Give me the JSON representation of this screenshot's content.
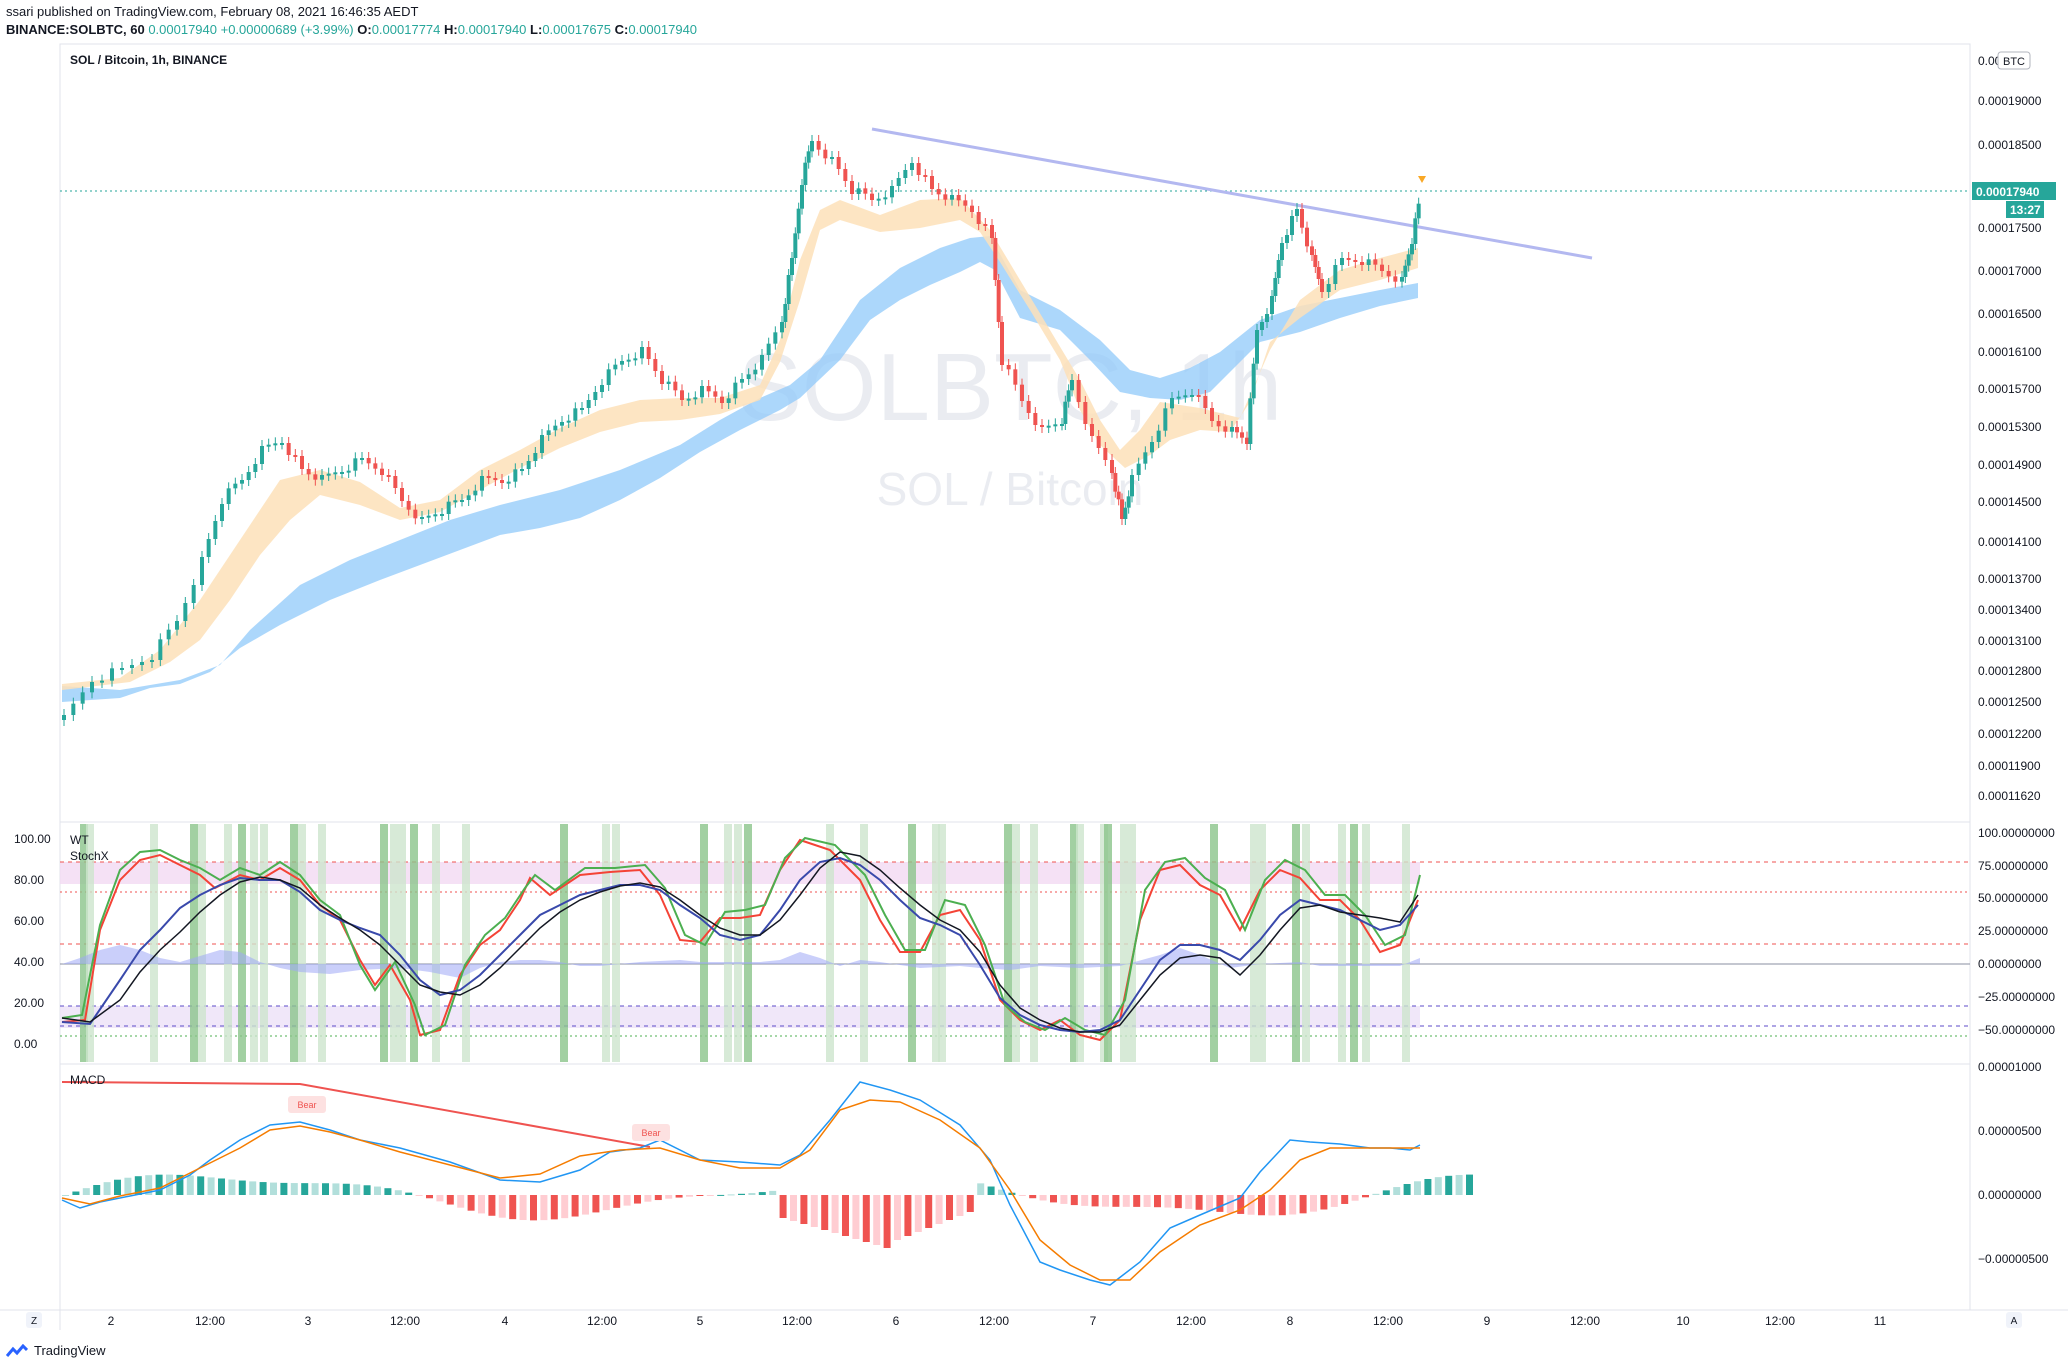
{
  "header": {
    "published": "ssari published on TradingView.com, February 08, 2021 16:46:35 AEDT",
    "symbol": "BINANCE:SOLBTC, 60",
    "last": "0.00017940",
    "change": "+0.00000689 (+3.99%)",
    "open_label": "O:",
    "open": "0.00017774",
    "high_label": "H:",
    "high": "0.00017940",
    "low_label": "L:",
    "low": "0.00017675",
    "close_label": "C:",
    "close": "0.00017940"
  },
  "main_pane": {
    "legend": "SOL / Bitcoin, 1h, BINANCE",
    "watermark_big": "SOLBTC, 1h",
    "watermark_small": "SOL / Bitcoin",
    "currency_badge": "BTC",
    "price_tag": "0.00017940",
    "countdown": "13:27",
    "price_ticks": [
      "0.00019000",
      "0.00018500",
      "0.00017940",
      "0.00017500",
      "0.00017000",
      "0.00016500",
      "0.00016100",
      "0.00015700",
      "0.00015300",
      "0.00014900",
      "0.00014500",
      "0.00014100",
      "0.00013700",
      "0.00013400",
      "0.00013100",
      "0.00012800",
      "0.00012500",
      "0.00012200",
      "0.00011900",
      "0.00011620"
    ],
    "top_tick_partial": "0.000"
  },
  "wt_pane": {
    "legend_1": "WT",
    "legend_2": "StochX",
    "left_ticks": [
      "100.00",
      "80.00",
      "60.00",
      "40.00",
      "20.00",
      "0.00"
    ],
    "right_ticks": [
      "100.00000000",
      "75.00000000",
      "50.00000000",
      "25.00000000",
      "0.00000000",
      "−25.00000000",
      "−50.00000000"
    ]
  },
  "macd_pane": {
    "legend": "MACD",
    "bear_label_1": "Bear",
    "bear_label_2": "Bear",
    "right_ticks": [
      "0.00001000",
      "0.00000500",
      "0.00000000",
      "−0.00000500"
    ]
  },
  "time_axis": {
    "labels": [
      "2",
      "12:00",
      "3",
      "12:00",
      "4",
      "12:00",
      "5",
      "12:00",
      "6",
      "12:00",
      "7",
      "12:00",
      "8",
      "12:00",
      "9",
      "12:00",
      "10",
      "12:00",
      "11"
    ],
    "left_button": "Z",
    "right_button": "A"
  },
  "colors": {
    "up": "#26a69a",
    "down": "#ef5350",
    "trendline": "#b3b8f0",
    "ema_fast_band": "#fde0b8",
    "ema_slow_band": "#90caf9",
    "price_tag_bg": "#26a69a"
  },
  "footer": {
    "brand": "TradingView"
  }
}
